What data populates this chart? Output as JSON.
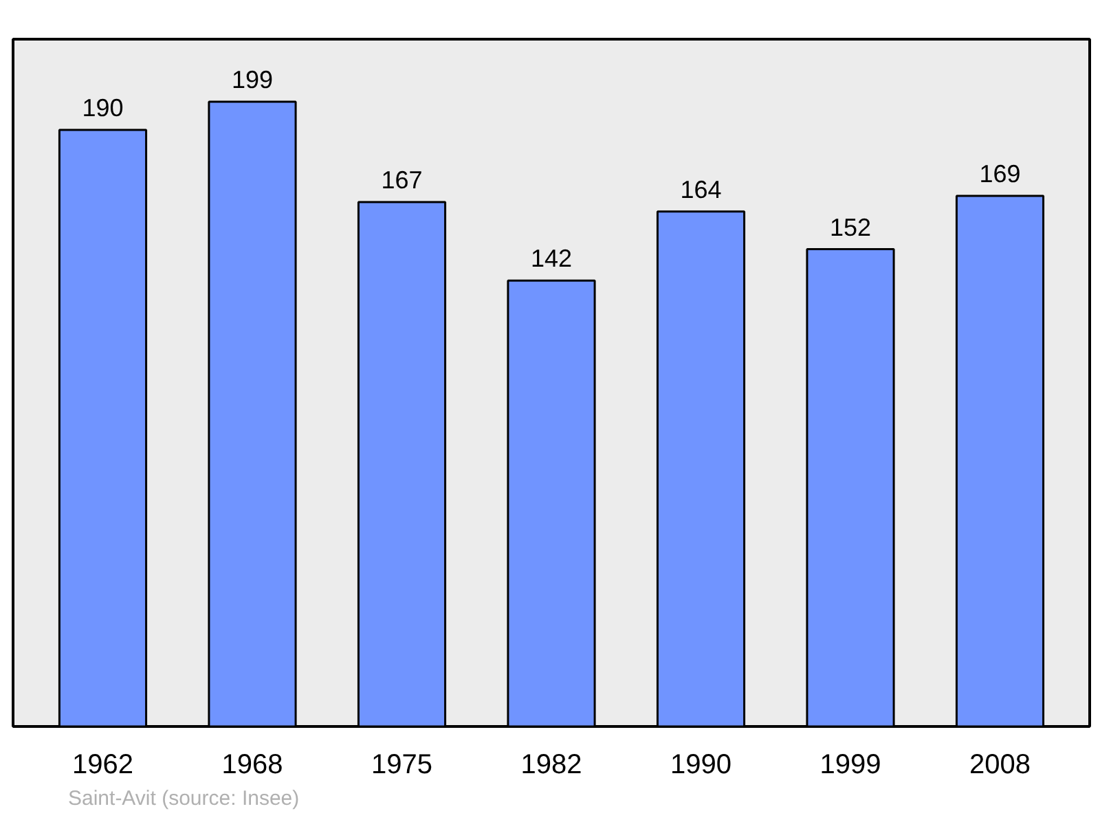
{
  "chart_data": {
    "type": "bar",
    "categories": [
      "1962",
      "1968",
      "1975",
      "1982",
      "1990",
      "1999",
      "2008"
    ],
    "values": [
      190,
      199,
      167,
      142,
      164,
      152,
      169
    ],
    "color": "#7094ff",
    "data_labels": true,
    "annotations": [
      "Saint-Avit    (source: Insee)"
    ]
  }
}
